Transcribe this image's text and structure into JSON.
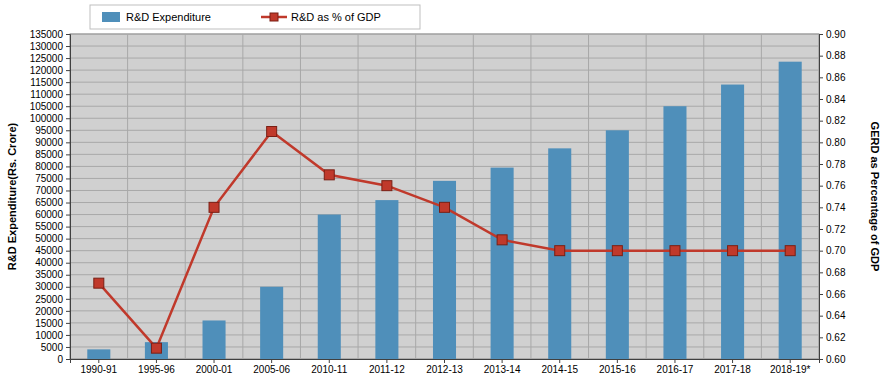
{
  "chart_data": {
    "type": "bar",
    "categories": [
      "1990-91",
      "1995-96",
      "2000-01",
      "2005-06",
      "2010-11",
      "2011-12",
      "2012-13",
      "2013-14",
      "2014-15",
      "2015-16",
      "2016-17",
      "2017-18",
      "2018-19*"
    ],
    "series": [
      {
        "name": "R&D Expenditure",
        "type": "bar",
        "color": "#4f8fba",
        "values": [
          4000,
          7000,
          16000,
          30000,
          60000,
          66000,
          74000,
          79500,
          87500,
          95000,
          105000,
          114000,
          123500
        ]
      },
      {
        "name": "R&D as % of GDP",
        "type": "line",
        "color": "#c0392b",
        "marker": "square",
        "axis": "y2",
        "values": [
          0.67,
          0.61,
          0.74,
          0.81,
          0.77,
          0.76,
          0.74,
          0.71,
          0.7,
          0.7,
          0.7,
          0.7,
          0.7
        ]
      }
    ],
    "y_label": "R&D Expenditure(Rs. Crore)",
    "y2_label": "GERD as Percentage of GDP",
    "ylim": [
      0,
      135000
    ],
    "yticks": [
      0,
      5000,
      10000,
      15000,
      20000,
      25000,
      30000,
      35000,
      40000,
      45000,
      50000,
      55000,
      60000,
      65000,
      70000,
      75000,
      80000,
      85000,
      90000,
      95000,
      100000,
      105000,
      110000,
      115000,
      120000,
      125000,
      130000,
      135000
    ],
    "y2lim": [
      0.6,
      0.9
    ],
    "y2ticks": [
      {
        "value": 0.6,
        "label": "0.60"
      },
      0.62,
      0.64,
      0.66,
      0.68,
      {
        "value": 0.7,
        "label": "0.70"
      },
      0.72,
      0.74,
      0.76,
      0.78,
      {
        "value": 0.8,
        "label": "0.80"
      },
      0.82,
      0.84,
      0.86,
      0.88,
      {
        "value": 0.9,
        "label": "0.90"
      }
    ],
    "grid": true,
    "legend": "top-left"
  }
}
